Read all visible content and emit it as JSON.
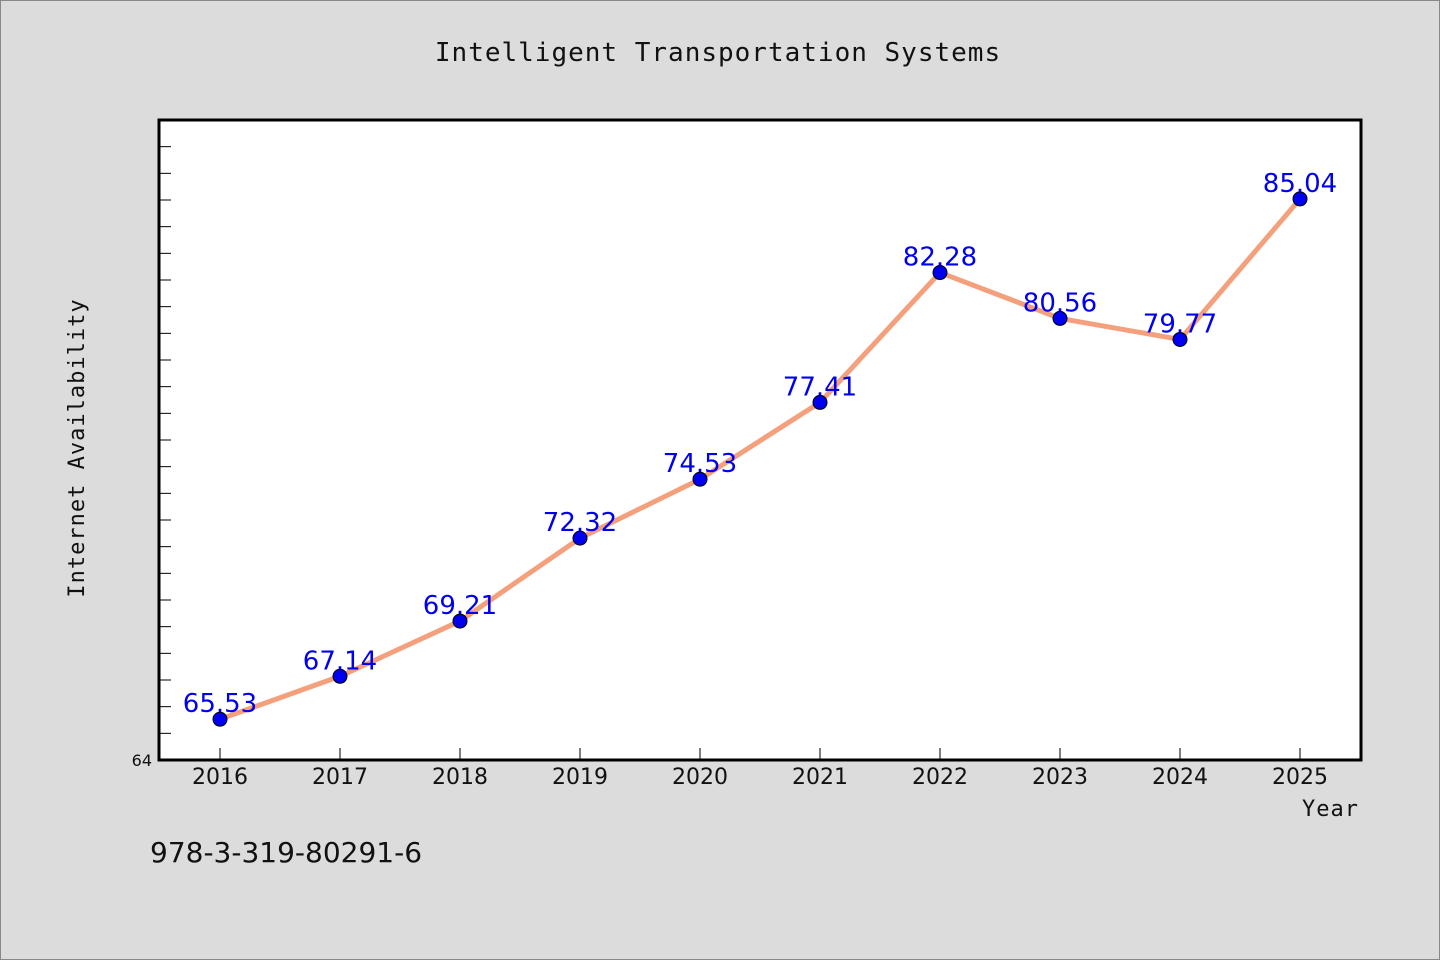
{
  "chart_data": {
    "type": "line",
    "title": "Intelligent Transportation Systems",
    "xlabel": "Year",
    "ylabel": "Internet Availability",
    "categories": [
      "2016",
      "2017",
      "2018",
      "2019",
      "2020",
      "2021",
      "2022",
      "2023",
      "2024",
      "2025"
    ],
    "series": [
      {
        "values": [
          65.53,
          67.14,
          69.21,
          72.32,
          74.53,
          77.41,
          82.28,
          80.56,
          79.77,
          85.04
        ],
        "data_labels": [
          "65.53",
          "67.14",
          "69.21",
          "72.32",
          "74.53",
          "77.41",
          "82.28",
          "80.56",
          "79.77",
          "85.04"
        ],
        "line_color": "#f4a07c",
        "marker_color": "#0000ee",
        "label_color": "#0000ee"
      }
    ],
    "ylim": [
      64,
      88
    ],
    "y_min_label": "64",
    "grid": false,
    "legend": "none"
  },
  "footer": {
    "code": "978-3-319-80291-6"
  }
}
